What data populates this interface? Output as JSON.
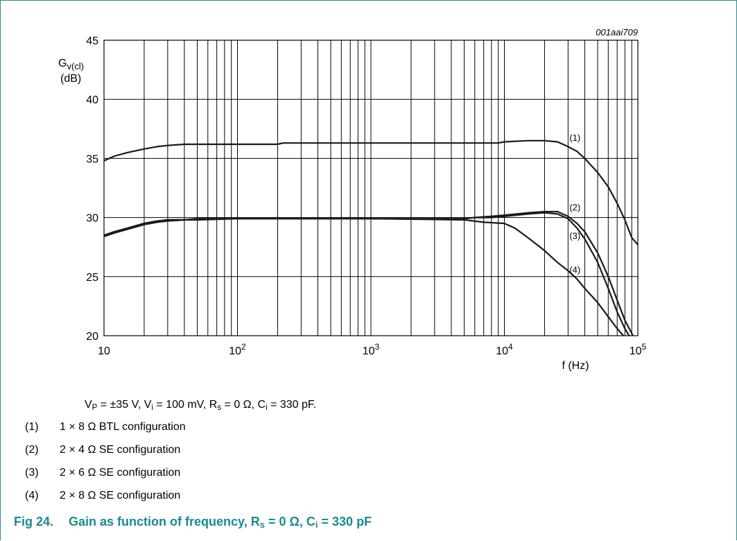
{
  "figure_ref": "001aai709",
  "chart_data": {
    "type": "line",
    "x_scale": "log",
    "xlim": [
      10,
      100000
    ],
    "ylim": [
      20,
      45
    ],
    "y_label_main": "G",
    "y_label_sub": "v(cl)",
    "y_unit": "(dB)",
    "x_axis_label": "f (Hz)",
    "y_ticks": [
      "20",
      "25",
      "30",
      "35",
      "40",
      "45"
    ],
    "x_ticks": [
      {
        "base": "10",
        "exp": ""
      },
      {
        "base": "10",
        "exp": "2"
      },
      {
        "base": "10",
        "exp": "3"
      },
      {
        "base": "10",
        "exp": "4"
      },
      {
        "base": "10",
        "exp": "5"
      }
    ],
    "grid": true,
    "series": [
      {
        "name": "(1)",
        "points": [
          [
            10,
            34.8
          ],
          [
            12,
            35.2
          ],
          [
            15,
            35.5
          ],
          [
            20,
            35.8
          ],
          [
            25,
            36.0
          ],
          [
            30,
            36.1
          ],
          [
            40,
            36.2
          ],
          [
            50,
            36.2
          ],
          [
            100,
            36.2
          ],
          [
            200,
            36.2
          ],
          [
            220,
            36.3
          ],
          [
            1000,
            36.3
          ],
          [
            5000,
            36.3
          ],
          [
            9000,
            36.3
          ],
          [
            10000,
            36.4
          ],
          [
            15000,
            36.5
          ],
          [
            20000,
            36.5
          ],
          [
            25000,
            36.4
          ],
          [
            30000,
            36.0
          ],
          [
            35000,
            35.6
          ],
          [
            40000,
            35.0
          ],
          [
            50000,
            33.8
          ],
          [
            60000,
            32.6
          ],
          [
            70000,
            31.2
          ],
          [
            80000,
            29.8
          ],
          [
            90000,
            28.3
          ],
          [
            100000,
            27.7
          ]
        ]
      },
      {
        "name": "(2)",
        "points": [
          [
            10,
            28.5
          ],
          [
            12,
            28.8
          ],
          [
            15,
            29.1
          ],
          [
            20,
            29.5
          ],
          [
            25,
            29.7
          ],
          [
            30,
            29.8
          ],
          [
            40,
            29.8
          ],
          [
            50,
            29.9
          ],
          [
            100,
            29.9
          ],
          [
            1000,
            29.9
          ],
          [
            5000,
            29.9
          ],
          [
            6000,
            30.0
          ],
          [
            8000,
            30.1
          ],
          [
            10000,
            30.2
          ],
          [
            15000,
            30.4
          ],
          [
            20000,
            30.5
          ],
          [
            25000,
            30.5
          ],
          [
            30000,
            30.1
          ],
          [
            35000,
            29.5
          ],
          [
            40000,
            28.8
          ],
          [
            50000,
            27.0
          ],
          [
            60000,
            25.0
          ],
          [
            70000,
            23.0
          ],
          [
            80000,
            21.3
          ],
          [
            92000,
            20.0
          ]
        ]
      },
      {
        "name": "(3)",
        "points": [
          [
            10,
            28.5
          ],
          [
            12,
            28.8
          ],
          [
            15,
            29.1
          ],
          [
            20,
            29.5
          ],
          [
            25,
            29.7
          ],
          [
            30,
            29.8
          ],
          [
            40,
            29.8
          ],
          [
            50,
            29.9
          ],
          [
            100,
            29.9
          ],
          [
            1000,
            29.9
          ],
          [
            5000,
            29.9
          ],
          [
            6000,
            30.0
          ],
          [
            8000,
            30.0
          ],
          [
            10000,
            30.1
          ],
          [
            15000,
            30.3
          ],
          [
            20000,
            30.4
          ],
          [
            25000,
            30.3
          ],
          [
            30000,
            29.9
          ],
          [
            35000,
            29.1
          ],
          [
            40000,
            28.2
          ],
          [
            50000,
            26.2
          ],
          [
            60000,
            24.0
          ],
          [
            70000,
            22.0
          ],
          [
            80000,
            20.6
          ],
          [
            86000,
            20.0
          ]
        ]
      },
      {
        "name": "(4)",
        "points": [
          [
            10,
            28.4
          ],
          [
            12,
            28.7
          ],
          [
            15,
            29.0
          ],
          [
            20,
            29.4
          ],
          [
            25,
            29.6
          ],
          [
            30,
            29.7
          ],
          [
            40,
            29.8
          ],
          [
            50,
            29.8
          ],
          [
            100,
            29.9
          ],
          [
            1000,
            29.9
          ],
          [
            5000,
            29.8
          ],
          [
            7000,
            29.6
          ],
          [
            10000,
            29.5
          ],
          [
            12000,
            29.1
          ],
          [
            15000,
            28.3
          ],
          [
            20000,
            27.2
          ],
          [
            25000,
            26.2
          ],
          [
            30000,
            25.5
          ],
          [
            35000,
            24.8
          ],
          [
            40000,
            24.0
          ],
          [
            50000,
            22.8
          ],
          [
            60000,
            21.6
          ],
          [
            70000,
            20.6
          ],
          [
            78000,
            20.0
          ]
        ]
      }
    ],
    "labels": [
      {
        "text": "(1)",
        "at": [
          33000,
          36.5
        ]
      },
      {
        "text": "(2)",
        "at": [
          33000,
          30.6
        ]
      },
      {
        "text": "(3)",
        "at": [
          33000,
          28.2
        ]
      },
      {
        "text": "(4)",
        "at": [
          33000,
          25.3
        ]
      }
    ]
  },
  "conditions": {
    "vp_pre": "V",
    "vp_sub": "P",
    "vp_post": " = ±35 V, V",
    "vi_sub": "i",
    "vi_post": " = 100 mV, R",
    "rs_sub": "s",
    "rs_post": " = 0 Ω, C",
    "ci_sub": "i",
    "ci_post": " = 330 pF."
  },
  "legend": [
    {
      "num": "(1)",
      "text": "1 × 8 Ω BTL configuration"
    },
    {
      "num": "(2)",
      "text": "2 × 4 Ω SE configuration"
    },
    {
      "num": "(3)",
      "text": "2 × 6 Ω SE configuration"
    },
    {
      "num": "(4)",
      "text": "2 × 8 Ω SE configuration"
    }
  ],
  "caption": {
    "fig": "Fig 24.",
    "pre": "Gain as function of frequency, R",
    "rs_sub": "s",
    "mid": " = 0 Ω, C",
    "ci_sub": "i",
    "post": " = 330 pF"
  }
}
